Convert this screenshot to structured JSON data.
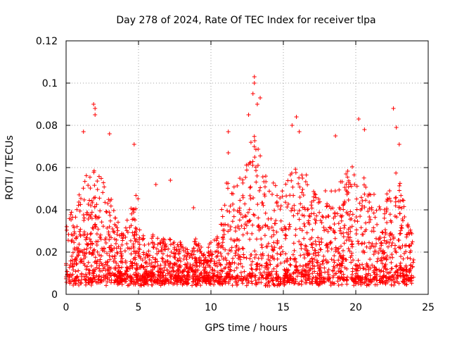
{
  "chart_data": {
    "type": "scatter",
    "title": "Day 278 of 2024, Rate Of TEC Index for receiver tlpa",
    "xlabel": "GPS time / hours",
    "ylabel": "ROTI / TECUs",
    "xlim": [
      0,
      25
    ],
    "ylim": [
      0,
      0.12
    ],
    "x_ticks": [
      "0",
      "5",
      "10",
      "15",
      "20",
      "25"
    ],
    "y_ticks": [
      "0",
      "0.02",
      "0.04",
      "0.06",
      "0.08",
      "0.1",
      "0.12"
    ],
    "grid": true,
    "marker": "plus",
    "color": "#ff0000",
    "density_profile": {
      "note_hidden": false,
      "hours": [
        0.0,
        0.5,
        1.0,
        1.5,
        2.0,
        2.5,
        3.0,
        3.5,
        4.0,
        4.5,
        5.0,
        5.5,
        6.0,
        6.5,
        7.0,
        7.5,
        8.0,
        8.5,
        9.0,
        9.5,
        10.0,
        10.5,
        11.0,
        11.5,
        12.0,
        12.5,
        13.0,
        13.5,
        14.0,
        14.5,
        15.0,
        15.5,
        16.0,
        16.5,
        17.0,
        17.5,
        18.0,
        18.5,
        19.0,
        19.5,
        20.0,
        20.5,
        21.0,
        21.5,
        22.0,
        22.5,
        23.0,
        23.5,
        24.0
      ],
      "upper_envelope": [
        0.036,
        0.04,
        0.05,
        0.058,
        0.06,
        0.055,
        0.05,
        0.035,
        0.032,
        0.045,
        0.05,
        0.02,
        0.03,
        0.025,
        0.03,
        0.025,
        0.025,
        0.02,
        0.028,
        0.02,
        0.025,
        0.03,
        0.055,
        0.05,
        0.055,
        0.07,
        0.075,
        0.065,
        0.055,
        0.052,
        0.055,
        0.058,
        0.06,
        0.06,
        0.05,
        0.045,
        0.05,
        0.05,
        0.055,
        0.06,
        0.062,
        0.058,
        0.05,
        0.045,
        0.045,
        0.055,
        0.06,
        0.035,
        0.028
      ]
    },
    "outliers": [
      {
        "x": 1.2,
        "y": 0.077
      },
      {
        "x": 1.9,
        "y": 0.09
      },
      {
        "x": 2.0,
        "y": 0.088
      },
      {
        "x": 2.0,
        "y": 0.085
      },
      {
        "x": 3.0,
        "y": 0.076
      },
      {
        "x": 4.7,
        "y": 0.071
      },
      {
        "x": 6.2,
        "y": 0.052
      },
      {
        "x": 7.2,
        "y": 0.054
      },
      {
        "x": 8.8,
        "y": 0.041
      },
      {
        "x": 11.2,
        "y": 0.067
      },
      {
        "x": 11.2,
        "y": 0.077
      },
      {
        "x": 12.6,
        "y": 0.085
      },
      {
        "x": 13.0,
        "y": 0.103
      },
      {
        "x": 13.0,
        "y": 0.1
      },
      {
        "x": 12.9,
        "y": 0.095
      },
      {
        "x": 13.2,
        "y": 0.09
      },
      {
        "x": 13.4,
        "y": 0.093
      },
      {
        "x": 15.9,
        "y": 0.084
      },
      {
        "x": 15.6,
        "y": 0.08
      },
      {
        "x": 16.1,
        "y": 0.077
      },
      {
        "x": 18.6,
        "y": 0.075
      },
      {
        "x": 20.2,
        "y": 0.083
      },
      {
        "x": 20.6,
        "y": 0.078
      },
      {
        "x": 22.6,
        "y": 0.088
      },
      {
        "x": 22.8,
        "y": 0.079
      },
      {
        "x": 23.0,
        "y": 0.071
      }
    ]
  }
}
